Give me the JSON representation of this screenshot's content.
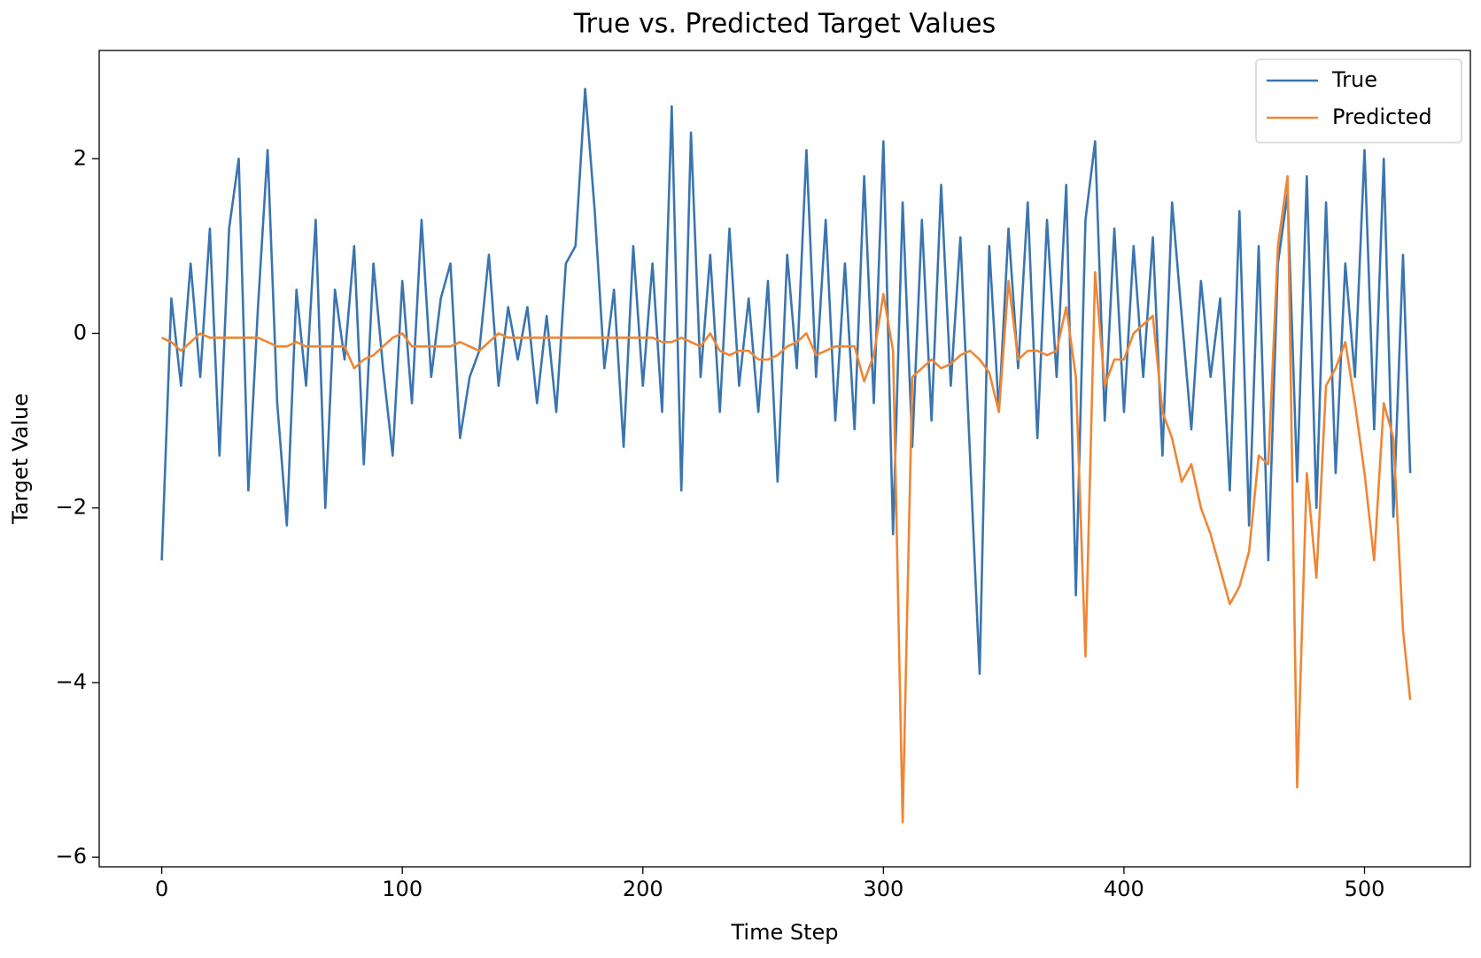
{
  "chart_data": {
    "type": "line",
    "title": "True vs. Predicted Target Values",
    "xlabel": "Time Step",
    "ylabel": "Target Value",
    "x": [
      0,
      4,
      8,
      12,
      16,
      20,
      24,
      28,
      32,
      36,
      40,
      44,
      48,
      52,
      56,
      60,
      64,
      68,
      72,
      76,
      80,
      84,
      88,
      92,
      96,
      100,
      104,
      108,
      112,
      116,
      120,
      124,
      128,
      132,
      136,
      140,
      144,
      148,
      152,
      156,
      160,
      164,
      168,
      172,
      176,
      180,
      184,
      188,
      192,
      196,
      200,
      204,
      208,
      212,
      216,
      220,
      224,
      228,
      232,
      236,
      240,
      244,
      248,
      252,
      256,
      260,
      264,
      268,
      272,
      276,
      280,
      284,
      288,
      292,
      296,
      300,
      304,
      308,
      312,
      316,
      320,
      324,
      328,
      332,
      336,
      340,
      344,
      348,
      352,
      356,
      360,
      364,
      368,
      372,
      376,
      380,
      384,
      388,
      392,
      396,
      400,
      404,
      408,
      412,
      416,
      420,
      424,
      428,
      432,
      436,
      440,
      444,
      448,
      452,
      456,
      460,
      464,
      468,
      472,
      476,
      480,
      484,
      488,
      492,
      496,
      500,
      504,
      508,
      512,
      516,
      519
    ],
    "series": [
      {
        "name": "True",
        "color": "#3b75af",
        "values": [
          -2.6,
          0.4,
          -0.6,
          0.8,
          -0.5,
          1.2,
          -1.4,
          1.2,
          2.0,
          -1.8,
          0.3,
          2.1,
          -0.8,
          -2.2,
          0.5,
          -0.6,
          1.3,
          -2.0,
          0.5,
          -0.3,
          1.0,
          -1.5,
          0.8,
          -0.4,
          -1.4,
          0.6,
          -0.8,
          1.3,
          -0.5,
          0.4,
          0.8,
          -1.2,
          -0.5,
          -0.2,
          0.9,
          -0.6,
          0.3,
          -0.3,
          0.3,
          -0.8,
          0.2,
          -0.9,
          0.8,
          1.0,
          2.8,
          1.4,
          -0.4,
          0.5,
          -1.3,
          1.0,
          -0.6,
          0.8,
          -0.9,
          2.6,
          -1.8,
          2.3,
          -0.5,
          0.9,
          -0.9,
          1.2,
          -0.6,
          0.4,
          -0.9,
          0.6,
          -1.7,
          0.9,
          -0.4,
          2.1,
          -0.5,
          1.3,
          -1.0,
          0.8,
          -1.1,
          1.8,
          -0.8,
          2.2,
          -2.3,
          1.5,
          -1.3,
          1.3,
          -1.0,
          1.7,
          -0.6,
          1.1,
          -1.4,
          -3.9,
          1.0,
          -0.9,
          1.2,
          -0.4,
          1.5,
          -1.2,
          1.3,
          -0.5,
          1.7,
          -3.0,
          1.3,
          2.2,
          -1.0,
          1.2,
          -0.9,
          1.0,
          -0.5,
          1.1,
          -1.4,
          1.5,
          0.2,
          -1.1,
          0.6,
          -0.5,
          0.4,
          -1.8,
          1.4,
          -2.2,
          1.0,
          -2.6,
          0.8,
          1.6,
          -1.7,
          1.8,
          -2.0,
          1.5,
          -1.6,
          0.8,
          -0.5,
          2.1,
          -1.1,
          2.0,
          -2.1,
          0.9,
          -1.6
        ]
      },
      {
        "name": "Predicted",
        "color": "#ef8636",
        "values": [
          -0.05,
          -0.1,
          -0.2,
          -0.1,
          0.0,
          -0.05,
          -0.05,
          -0.05,
          -0.05,
          -0.05,
          -0.05,
          -0.1,
          -0.15,
          -0.15,
          -0.1,
          -0.15,
          -0.15,
          -0.15,
          -0.15,
          -0.15,
          -0.4,
          -0.3,
          -0.25,
          -0.15,
          -0.05,
          0.0,
          -0.15,
          -0.15,
          -0.15,
          -0.15,
          -0.15,
          -0.1,
          -0.15,
          -0.2,
          -0.1,
          0.0,
          -0.05,
          -0.05,
          -0.05,
          -0.05,
          -0.05,
          -0.05,
          -0.05,
          -0.05,
          -0.05,
          -0.05,
          -0.05,
          -0.05,
          -0.05,
          -0.05,
          -0.05,
          -0.05,
          -0.1,
          -0.1,
          -0.05,
          -0.1,
          -0.15,
          0.0,
          -0.2,
          -0.25,
          -0.2,
          -0.2,
          -0.3,
          -0.3,
          -0.25,
          -0.15,
          -0.1,
          0.0,
          -0.25,
          -0.2,
          -0.15,
          -0.15,
          -0.15,
          -0.55,
          -0.25,
          0.45,
          -0.2,
          -5.6,
          -0.5,
          -0.4,
          -0.3,
          -0.4,
          -0.35,
          -0.25,
          -0.2,
          -0.3,
          -0.45,
          -0.9,
          0.6,
          -0.3,
          -0.2,
          -0.2,
          -0.25,
          -0.2,
          0.3,
          -0.5,
          -3.7,
          0.7,
          -0.6,
          -0.3,
          -0.3,
          0.0,
          0.1,
          0.2,
          -0.9,
          -1.2,
          -1.7,
          -1.5,
          -2.0,
          -2.3,
          -2.7,
          -3.1,
          -2.9,
          -2.5,
          -1.4,
          -1.5,
          1.0,
          1.8,
          -5.2,
          -1.6,
          -2.8,
          -0.6,
          -0.4,
          -0.1,
          -0.8,
          -1.6,
          -2.6,
          -0.8,
          -1.2,
          -3.4,
          -4.2
        ]
      }
    ],
    "xlim": [
      -26,
      544
    ],
    "ylim": [
      -6.11,
      3.24
    ],
    "xticks": [
      0,
      100,
      200,
      300,
      400,
      500
    ],
    "yticks": [
      {
        "value": -6,
        "label": "−6"
      },
      {
        "value": -4,
        "label": "−4"
      },
      {
        "value": -2,
        "label": "−2"
      },
      0,
      2
    ],
    "legend": "upper right",
    "grid": false
  }
}
